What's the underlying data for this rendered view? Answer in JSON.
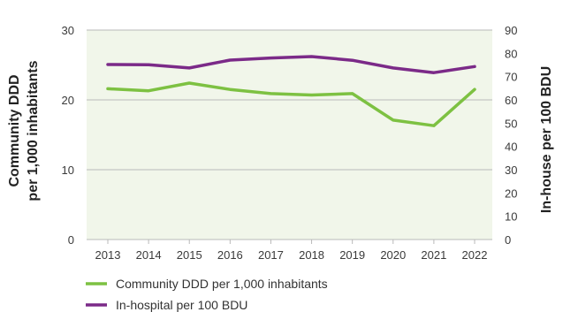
{
  "chart_data": {
    "type": "line",
    "x": [
      "2013",
      "2014",
      "2015",
      "2016",
      "2017",
      "2018",
      "2019",
      "2020",
      "2021",
      "2022"
    ],
    "y_left": {
      "label_lines": [
        "Community DDD",
        "per 1,000 inhabitants"
      ],
      "ticks": [
        "0",
        "10",
        "20",
        "30"
      ],
      "range": [
        0,
        30
      ]
    },
    "y_right": {
      "label": "In-house per 100 BDU",
      "ticks": [
        "0",
        "10",
        "20",
        "30",
        "40",
        "50",
        "60",
        "70",
        "80",
        "90"
      ],
      "range": [
        0,
        90
      ]
    },
    "series": [
      {
        "name": "Community DDD per 1,000 inhabitants",
        "axis": "left",
        "color": "#7dc142",
        "values": [
          21.6,
          21.3,
          22.4,
          21.5,
          20.9,
          20.7,
          20.9,
          17.1,
          16.3,
          21.5
        ]
      },
      {
        "name": "In-hospital per 100 BDU",
        "axis": "right",
        "color": "#7b2a88",
        "values": [
          75.2,
          75.1,
          73.7,
          77.1,
          78.0,
          78.6,
          77.0,
          73.7,
          71.7,
          74.3
        ]
      }
    ],
    "grid": "horizontal",
    "legend_position": "bottom-left"
  }
}
